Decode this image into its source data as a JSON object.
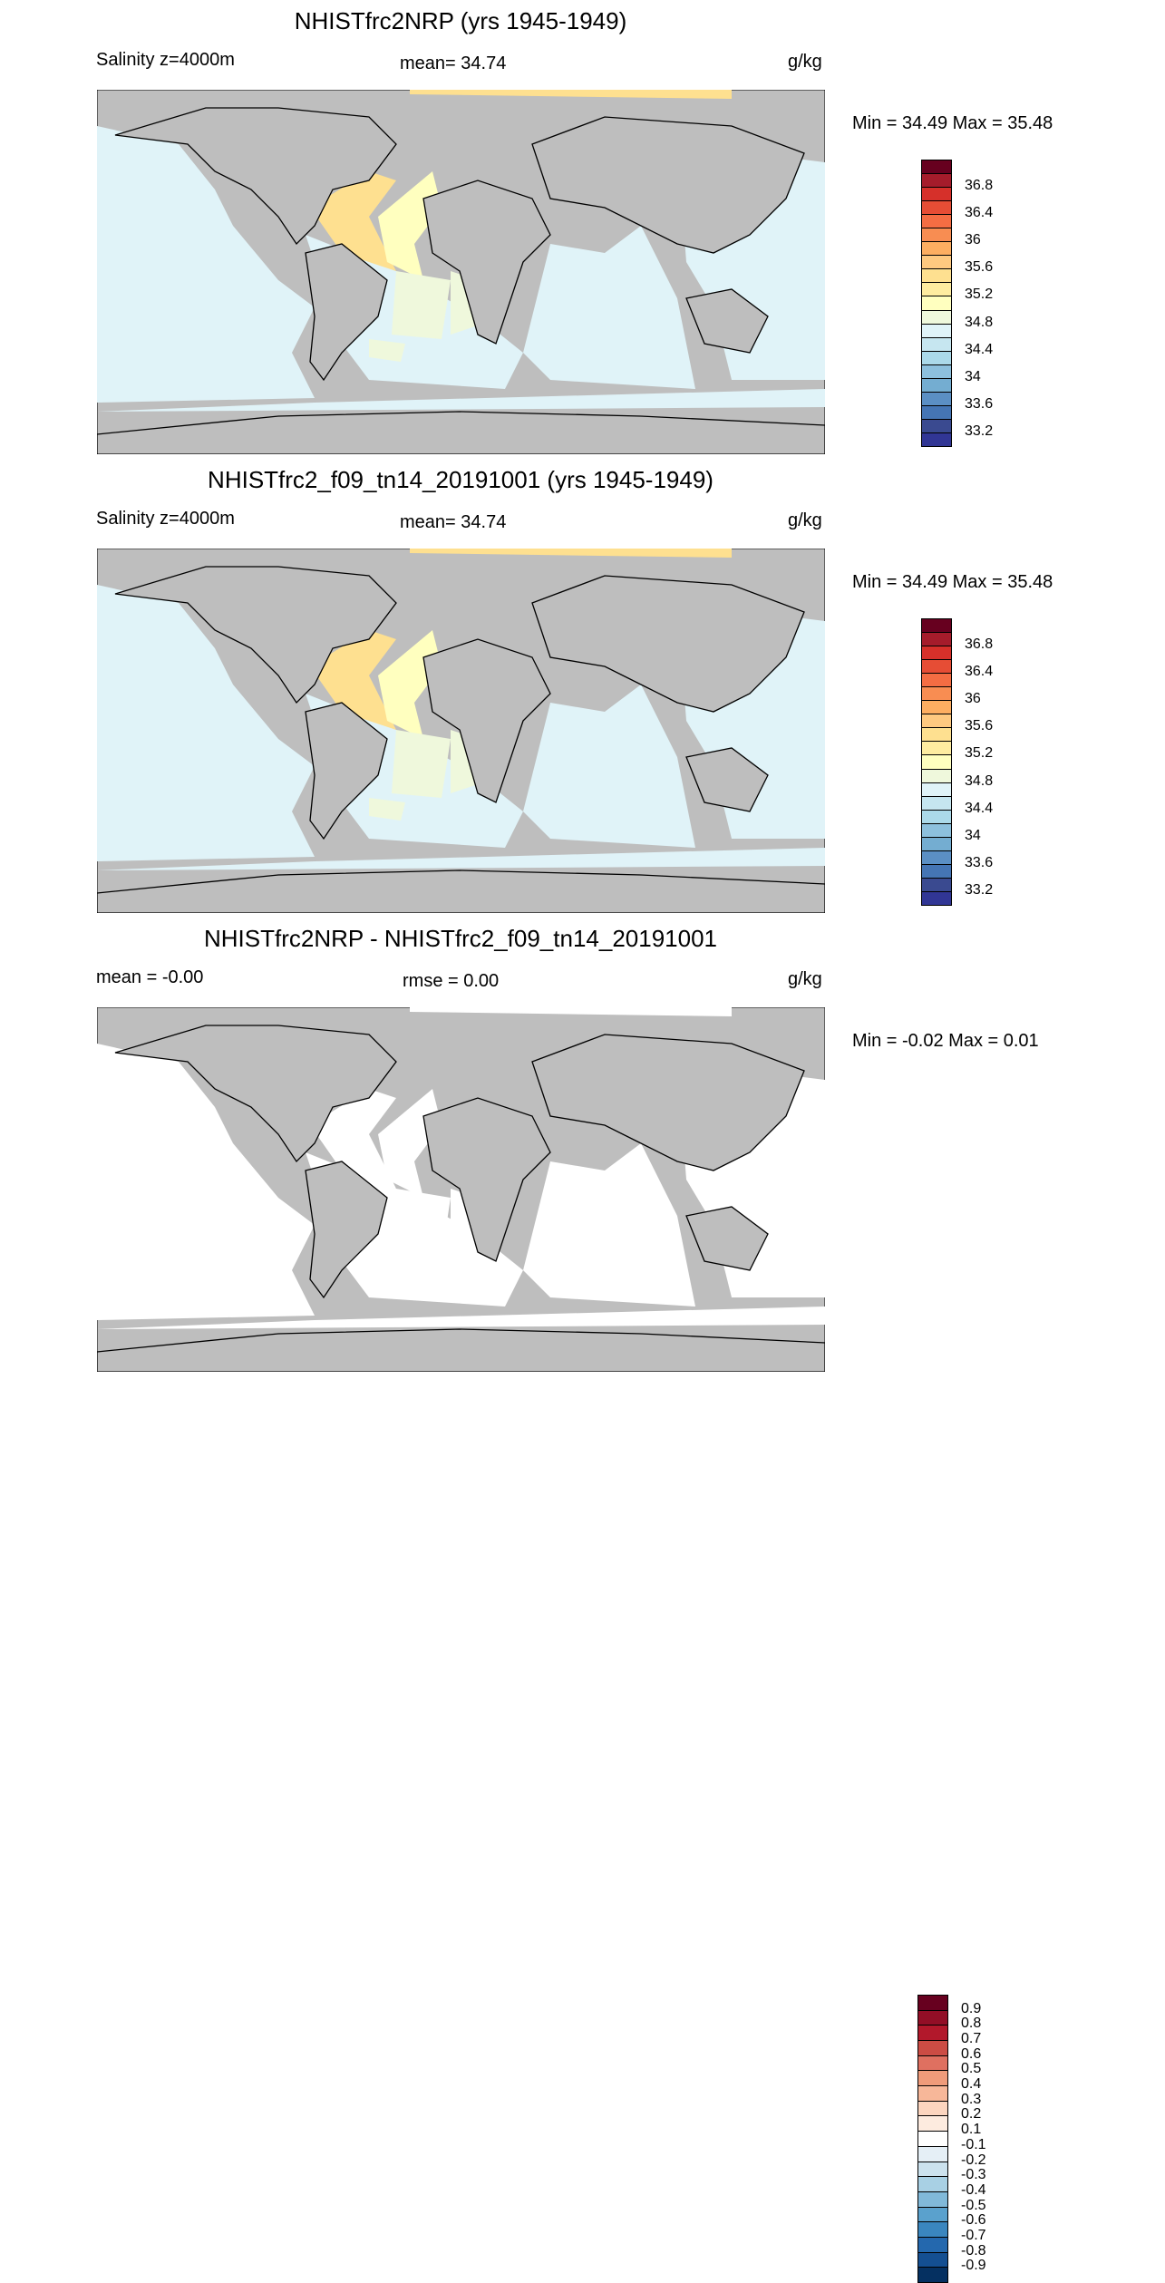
{
  "panels": [
    {
      "title": "NHISTfrc2NRP (yrs 1945-1949)",
      "left": "Salinity z=4000m",
      "center": "mean=  34.74",
      "units": "g/kg",
      "minmax": "Min =  34.49 Max =  35.48",
      "colorbar": "salinity",
      "fills": {
        "ocean": "#e0f3f8",
        "warm": "#fee090",
        "warm2": "#ffffbf",
        "green": "#eff8dc"
      }
    },
    {
      "title": "NHISTfrc2_f09_tn14_20191001 (yrs 1945-1949)",
      "left": "Salinity z=4000m",
      "center": "mean=  34.74",
      "units": "g/kg",
      "minmax": "Min =  34.49 Max =  35.48",
      "colorbar": "salinity",
      "fills": {
        "ocean": "#e0f3f8",
        "warm": "#fee090",
        "warm2": "#ffffbf",
        "green": "#eff8dc"
      }
    },
    {
      "title": "NHISTfrc2NRP - NHISTfrc2_f09_tn14_20191001",
      "left": "mean =  -0.00",
      "center": "rmse =   0.00",
      "units": "g/kg",
      "minmax": "Min =  -0.02 Max =   0.01",
      "colorbar": "diff",
      "fills": {
        "ocean": "#ffffff",
        "warm": "#ffffff",
        "warm2": "#ffffff",
        "green": "#ffffff"
      }
    }
  ],
  "land_color": "#bebebe",
  "colorbars": {
    "salinity": {
      "colors": [
        "#67001f",
        "#a51c2b",
        "#d6302a",
        "#e64d35",
        "#f46d43",
        "#f88d52",
        "#fdae61",
        "#fec980",
        "#fee090",
        "#feeca0",
        "#ffffbf",
        "#eff8dc",
        "#e0f3f8",
        "#c6e6f0",
        "#abd9e9",
        "#8dc0dd",
        "#74add1",
        "#5b8fc4",
        "#4575b4",
        "#3a4a90",
        "#313695"
      ],
      "labels": [
        "36.8",
        "36.4",
        "36",
        "35.6",
        "35.2",
        "34.8",
        "34.4",
        "34",
        "33.6",
        "33.2"
      ]
    },
    "diff": {
      "colors": [
        "#67001f",
        "#920e26",
        "#b2182b",
        "#cc4c44",
        "#df7060",
        "#ef9b7a",
        "#f7b799",
        "#fcd5bf",
        "#fdebdf",
        "#ffffff",
        "#e5eff6",
        "#cce2ee",
        "#a8d0e4",
        "#81b9d9",
        "#5aa1cd",
        "#3a86bf",
        "#2468ae",
        "#144f92",
        "#053061"
      ],
      "labels": [
        "0.9",
        "0.8",
        "0.7",
        "0.6",
        "0.5",
        "0.4",
        "0.3",
        "0.2",
        "0.1",
        "-0.1",
        "-0.2",
        "-0.3",
        "-0.4",
        "-0.5",
        "-0.6",
        "-0.7",
        "-0.8",
        "-0.9"
      ]
    }
  }
}
